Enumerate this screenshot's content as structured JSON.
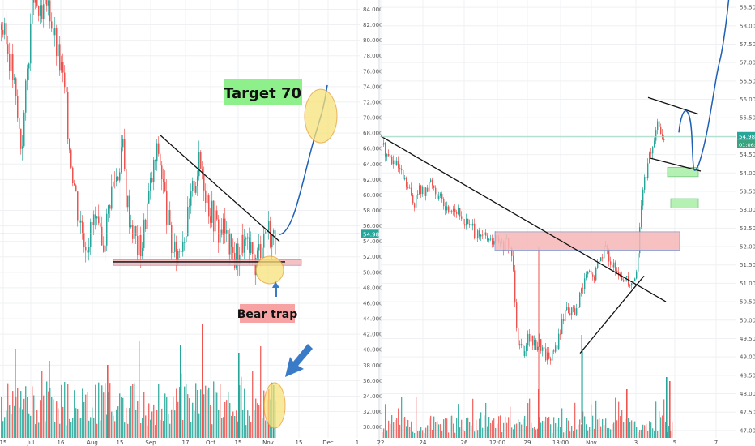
{
  "chart_data": [
    {
      "type": "candlestick",
      "panel": "left",
      "title": "",
      "y_ticks": [
        "84.000",
        "82.000",
        "80.000",
        "78.000",
        "76.000",
        "74.000",
        "72.000",
        "70.000",
        "68.000",
        "66.000",
        "64.000",
        "62.000",
        "60.000",
        "58.000",
        "56.000",
        "54.000",
        "52.000",
        "50.000",
        "48.000",
        "46.000",
        "44.000",
        "42.000",
        "40.000",
        "38.000",
        "36.000",
        "34.000",
        "32.000",
        "30.000"
      ],
      "x_ticks": [
        "15",
        "Jul",
        "16",
        "Aug",
        "15",
        "Sep",
        "17",
        "Oct",
        "15",
        "Nov",
        "15",
        "Dec",
        "1"
      ],
      "ylim": [
        28.6,
        85.2
      ],
      "last_price_label": "54.981",
      "last_price": 54.981,
      "annotations": {
        "target_label": "Target 70",
        "trap_label": "Bear trap"
      },
      "support_level": 51.3,
      "resistance_trendline": [
        [
          59,
          67.8
        ],
        [
          95,
          54.0
        ]
      ],
      "projection": [
        [
          95,
          54.9
        ],
        [
          98,
          56.0
        ],
        [
          102,
          63.0
        ],
        [
          106,
          69.5
        ],
        [
          108,
          74.0
        ]
      ],
      "candles_close_path": [
        82,
        80,
        78,
        75,
        70,
        66,
        73,
        80,
        86,
        84,
        82,
        85,
        84,
        81,
        78,
        76,
        72,
        66,
        62,
        58,
        56,
        54,
        55,
        57,
        55,
        53,
        56,
        60,
        62,
        63,
        67,
        60,
        57,
        55,
        53,
        54,
        58,
        61,
        64,
        66,
        62,
        58,
        54,
        52,
        53,
        55,
        56,
        59,
        62,
        64,
        63,
        60,
        58,
        57,
        55,
        56,
        54,
        53,
        52,
        53,
        54,
        53,
        52,
        51,
        53,
        55,
        56,
        55,
        54
      ]
    },
    {
      "type": "candlestick",
      "panel": "right",
      "title": "",
      "y_ticks": [
        "58.500",
        "58.000",
        "57.500",
        "57.000",
        "56.500",
        "56.000",
        "55.500",
        "55.000",
        "54.500",
        "54.000",
        "53.500",
        "53.000",
        "52.500",
        "52.000",
        "51.500",
        "51.000",
        "50.500",
        "50.000",
        "49.500",
        "49.000",
        "48.500",
        "48.000",
        "47.500",
        "47.000"
      ],
      "x_ticks": [
        "22",
        "24",
        "26",
        "12:00",
        "29",
        "13:00",
        "Nov",
        "3",
        "5",
        "7"
      ],
      "ylim": [
        46.8,
        58.7
      ],
      "last_price_label": "54.981",
      "last_price": 54.981,
      "countdown_label": "01:06:4",
      "zones": [
        {
          "from": 51.9,
          "to": 52.4,
          "kind": "resistance"
        },
        {
          "from": 53.9,
          "to": 54.15,
          "kind": "support"
        },
        {
          "from": 53.05,
          "to": 53.3,
          "kind": "support"
        }
      ]
    }
  ],
  "colors": {
    "up": "#26a69a",
    "down": "#ef5350",
    "grid": "#eef0f3",
    "axis_text": "#555555",
    "target_bg": "#8ef08a",
    "trap_bg": "#f7a3a3",
    "circle_fill": "#f7e27a",
    "circle_stroke": "#e69a2a",
    "projection": "#1f5fb4",
    "arrow": "#3a7bc8",
    "price_line": "#9fd9c4"
  }
}
